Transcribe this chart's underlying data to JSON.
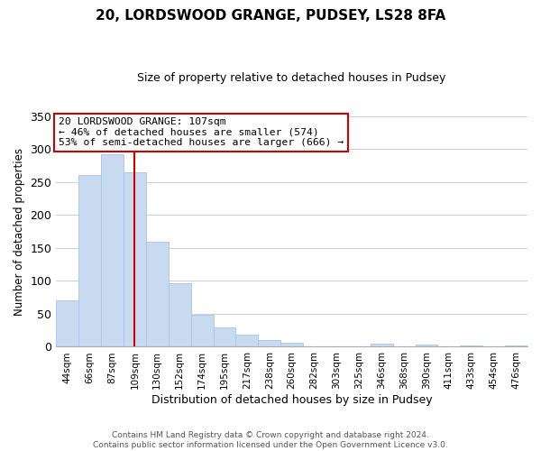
{
  "title": "20, LORDSWOOD GRANGE, PUDSEY, LS28 8FA",
  "subtitle": "Size of property relative to detached houses in Pudsey",
  "xlabel": "Distribution of detached houses by size in Pudsey",
  "ylabel": "Number of detached properties",
  "bar_labels": [
    "44sqm",
    "66sqm",
    "87sqm",
    "109sqm",
    "130sqm",
    "152sqm",
    "174sqm",
    "195sqm",
    "217sqm",
    "238sqm",
    "260sqm",
    "282sqm",
    "303sqm",
    "325sqm",
    "346sqm",
    "368sqm",
    "390sqm",
    "411sqm",
    "433sqm",
    "454sqm",
    "476sqm"
  ],
  "bar_values": [
    70,
    261,
    293,
    265,
    160,
    97,
    49,
    29,
    19,
    10,
    6,
    0,
    0,
    0,
    5,
    0,
    3,
    0,
    2,
    0,
    2
  ],
  "bar_color": "#c8daf0",
  "bar_edge_color": "#a8c4e8",
  "vline_x_index": 3,
  "vline_color": "#cc0000",
  "ylim": [
    0,
    350
  ],
  "yticks": [
    0,
    50,
    100,
    150,
    200,
    250,
    300,
    350
  ],
  "annotation_lines": [
    "20 LORDSWOOD GRANGE: 107sqm",
    "← 46% of detached houses are smaller (574)",
    "53% of semi-detached houses are larger (666) →"
  ],
  "annotation_box_color": "#ffffff",
  "annotation_box_edge": "#cc0000",
  "footer_line1": "Contains HM Land Registry data © Crown copyright and database right 2024.",
  "footer_line2": "Contains public sector information licensed under the Open Government Licence v3.0.",
  "bg_color": "#ffffff",
  "grid_color": "#c8c8c8"
}
